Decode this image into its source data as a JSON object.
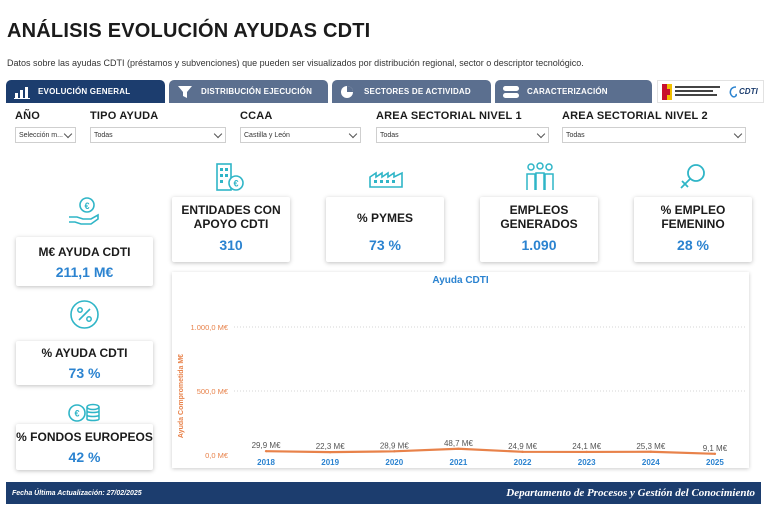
{
  "title": "ANÁLISIS EVOLUCIÓN AYUDAS CDTI",
  "subtitle": "Datos sobre las ayudas CDTI (préstamos y subvenciones) que pueden ser visualizados por distribución regional, sector o descriptor tecnológico.",
  "tabs": [
    {
      "label": "EVOLUCIÓN GENERAL",
      "icon": "bar-chart-icon",
      "active": true
    },
    {
      "label": "DISTRIBUCIÓN EJECUCIÓN",
      "icon": "funnel-icon",
      "active": false
    },
    {
      "label": "SECTORES DE ACTIVIDAD",
      "icon": "pie-chart-icon",
      "active": false
    },
    {
      "label": "CARACTERIZACIÓN",
      "icon": "toggle-icon",
      "active": false
    }
  ],
  "logos": {
    "ministry": "spain-government-logo",
    "cdti": "CDTI"
  },
  "filters": [
    {
      "label": "AÑO",
      "value": "Selección m..."
    },
    {
      "label": "TIPO AYUDA",
      "value": "Todas"
    },
    {
      "label": "CCAA",
      "value": "Castilla y León"
    },
    {
      "label": "AREA SECTORIAL NIVEL 1",
      "value": "Todas"
    },
    {
      "label": "AREA SECTORIAL NIVEL 2",
      "value": "Todas"
    }
  ],
  "kpis": {
    "ayuda": {
      "label": "M€ AYUDA CDTI",
      "value": "211,1 M€",
      "icon": "money-hand-icon"
    },
    "pct_ayuda": {
      "label": "% AYUDA CDTI",
      "value": "73 %",
      "icon": "percent-icon"
    },
    "fondos": {
      "label": "% FONDOS EUROPEOS",
      "value": "42 %",
      "icon": "coins-icon"
    },
    "entidades": {
      "label_1": "ENTIDADES CON",
      "label_2": "APOYO CDTI",
      "value": "310",
      "icon": "building-icon"
    },
    "pymes": {
      "label": "% PYMES",
      "value": "73 %",
      "icon": "factory-icon"
    },
    "empleos": {
      "label_1": "EMPLEOS",
      "label_2": "GENERADOS",
      "value": "1.090",
      "icon": "people-icon"
    },
    "femenino": {
      "label_1": "% EMPLEO",
      "label_2": "FEMENINO",
      "value": "28 %",
      "icon": "female-symbol-icon"
    }
  },
  "chart_data": {
    "type": "line",
    "title": "Ayuda CDTI",
    "ylabel": "Ayuda Comprometida M€",
    "xlabel": "",
    "ylim": [
      0,
      1000
    ],
    "yticks": [
      0,
      500,
      1000
    ],
    "ytick_labels": [
      "0,0 M€",
      "500,0 M€",
      "1.000,0 M€"
    ],
    "categories": [
      "2018",
      "2019",
      "2020",
      "2021",
      "2022",
      "2023",
      "2024",
      "2025"
    ],
    "values": [
      29.9,
      22.3,
      28.9,
      48.7,
      24.9,
      24.1,
      25.3,
      9.1
    ],
    "labels": [
      "29,9 M€",
      "22,3 M€",
      "28,9 M€",
      "48,7 M€",
      "24,9 M€",
      "24,1 M€",
      "25,3 M€",
      "9,1 M€"
    ],
    "line_color": "#e8824a",
    "axis_label_color": "#e8824a",
    "category_color": "#2b83d0",
    "grid": true
  },
  "footer": {
    "date": "Fecha Última Actualización: 27/02/2025",
    "department": "Departamento de Procesos y Gestión del Conocimiento"
  },
  "colors": {
    "accent": "#2b83d0",
    "nav": "#1c3d6e",
    "tab": "#5b6f8f",
    "icon": "#2fb5c7"
  }
}
